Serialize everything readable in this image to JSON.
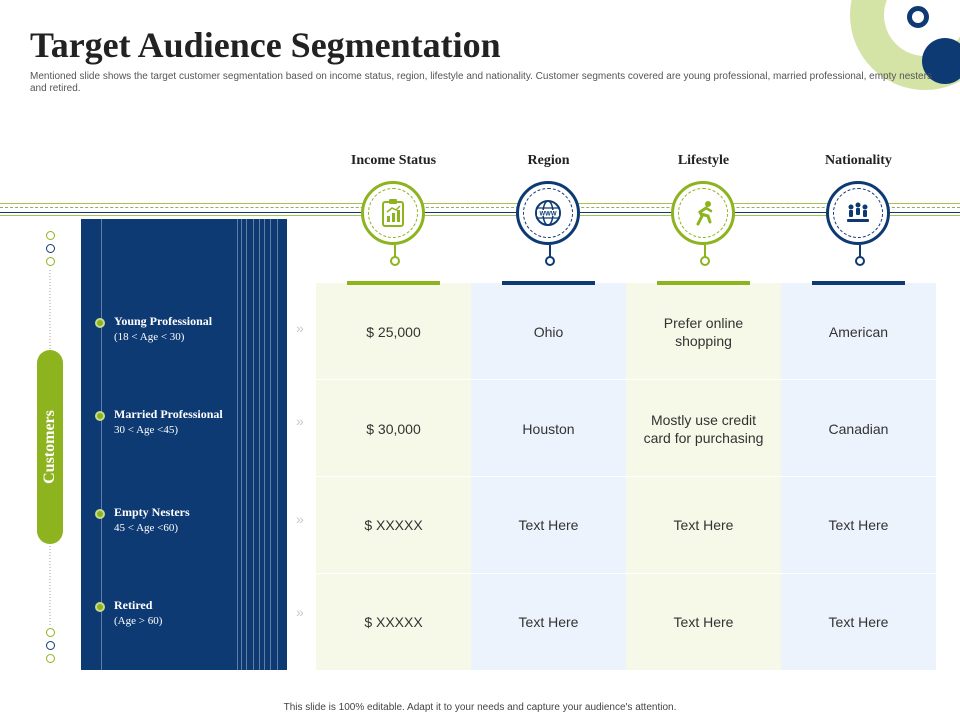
{
  "slide": {
    "title": "Target Audience Segmentation",
    "subtitle": "Mentioned slide shows the target customer segmentation based on income status, region, lifestyle and nationality. Customer segments covered are young professional, married professional, empty nesters and retired.",
    "footer": "This slide is 100% editable. Adapt it to your needs and capture your audience's attention."
  },
  "sidebar": {
    "label": "Customers"
  },
  "columns": [
    {
      "title": "Income Status",
      "icon": "report-icon",
      "accent": "#8db31f"
    },
    {
      "title": "Region",
      "icon": "globe-icon",
      "accent": "#0e3a74"
    },
    {
      "title": "Lifestyle",
      "icon": "runner-icon",
      "accent": "#8db31f"
    },
    {
      "title": "Nationality",
      "icon": "people-icon",
      "accent": "#0e3a74"
    }
  ],
  "segments": [
    {
      "name": "Young Professional",
      "age": "(18 < Age < 30)"
    },
    {
      "name": "Married Professional",
      "age": "30 < Age <45)"
    },
    {
      "name": "Empty Nesters",
      "age": "45 < Age <60)"
    },
    {
      "name": "Retired",
      "age": "(Age > 60)"
    }
  ],
  "rows": [
    [
      "$ 25,000",
      "Ohio",
      "Prefer online shopping",
      "American"
    ],
    [
      "$ 30,000",
      "Houston",
      "Mostly use credit card for purchasing",
      "Canadian"
    ],
    [
      "$ XXXXX",
      "Text Here",
      "Text Here",
      "Text Here"
    ],
    [
      "$ XXXXX",
      "Text Here",
      "Text Here",
      "Text Here"
    ]
  ],
  "colors": {
    "navy": "#0e3a74",
    "green": "#8db31f",
    "light_green": "#f6f9e8",
    "light_blue": "#edf3fc"
  }
}
